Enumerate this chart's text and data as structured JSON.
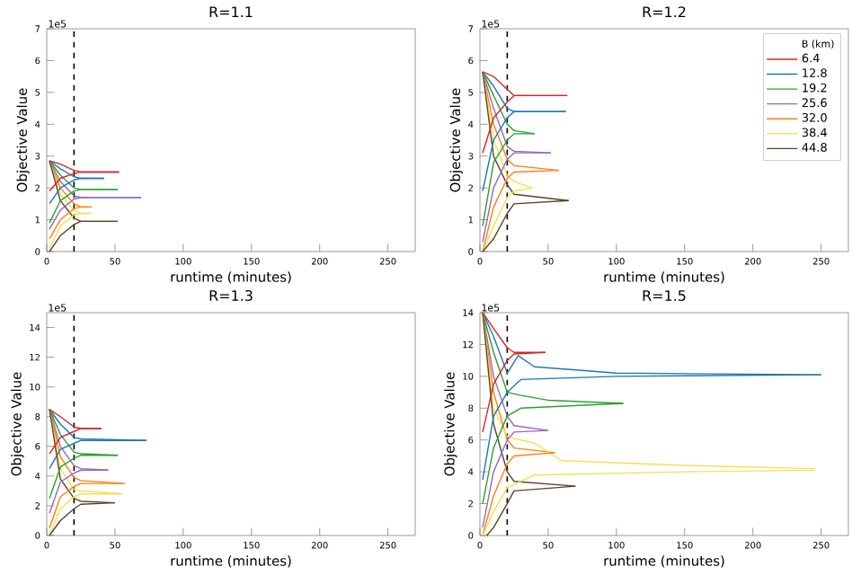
{
  "chart_data": [
    {
      "type": "line",
      "title": "R=1.1",
      "xlabel": "runtime (minutes)",
      "ylabel": "Objective Value",
      "annotations": [
        "1e5"
      ],
      "xlim": [
        0,
        270
      ],
      "xticks": [
        0,
        50,
        100,
        150,
        200,
        250
      ],
      "ylim": [
        0,
        7
      ],
      "yticks": [
        0,
        1,
        2,
        3,
        4,
        5,
        6,
        7
      ],
      "ref_lines": [
        {
          "axis": "x",
          "value": 20,
          "color": "#000000",
          "line_style": "dashed"
        }
      ],
      "series": [
        {
          "color": "#d62728",
          "x": [
            2,
            10,
            20,
            25,
            53
          ],
          "values": [
            2.85,
            2.75,
            2.55,
            2.5,
            2.5
          ]
        },
        {
          "color": "#1f77b4",
          "x": [
            2,
            10,
            20,
            25,
            42
          ],
          "values": [
            2.85,
            2.6,
            2.35,
            2.3,
            2.3
          ]
        },
        {
          "color": "#2ca02c",
          "x": [
            2,
            10,
            20,
            25,
            52
          ],
          "values": [
            2.85,
            2.4,
            2.0,
            1.95,
            1.95
          ]
        },
        {
          "color": "#9467bd",
          "x": [
            2,
            10,
            20,
            25,
            69
          ],
          "values": [
            2.85,
            2.2,
            1.75,
            1.7,
            1.7
          ]
        },
        {
          "color": "#ff7f0e",
          "x": [
            2,
            10,
            20,
            25,
            33
          ],
          "values": [
            2.85,
            2.0,
            1.5,
            1.4,
            1.4
          ]
        },
        {
          "color": "#f5e050",
          "x": [
            2,
            10,
            20,
            25,
            32
          ],
          "values": [
            2.85,
            1.8,
            1.3,
            1.2,
            1.2
          ]
        },
        {
          "color": "#5c4326",
          "x": [
            2,
            10,
            20,
            25,
            52
          ],
          "values": [
            2.85,
            1.6,
            1.05,
            0.95,
            0.95
          ]
        },
        {
          "color": "#d62728",
          "x": [
            2,
            10,
            20,
            25,
            53
          ],
          "values": [
            1.9,
            2.3,
            2.45,
            2.5,
            2.5
          ]
        },
        {
          "color": "#1f77b4",
          "x": [
            2,
            10,
            20,
            25,
            42
          ],
          "values": [
            1.5,
            2.0,
            2.25,
            2.3,
            2.3
          ]
        },
        {
          "color": "#2ca02c",
          "x": [
            2,
            10,
            20,
            25,
            52
          ],
          "values": [
            0.9,
            1.6,
            1.9,
            1.95,
            1.95
          ]
        },
        {
          "color": "#9467bd",
          "x": [
            2,
            10,
            20,
            25,
            69
          ],
          "values": [
            0.7,
            1.3,
            1.65,
            1.7,
            1.7
          ]
        },
        {
          "color": "#ff7f0e",
          "x": [
            2,
            10,
            20,
            25,
            33
          ],
          "values": [
            0.4,
            1.0,
            1.35,
            1.4,
            1.4
          ]
        },
        {
          "color": "#f5e050",
          "x": [
            2,
            10,
            20,
            25,
            32
          ],
          "values": [
            0.1,
            0.8,
            1.15,
            1.2,
            1.2
          ]
        },
        {
          "color": "#5c4326",
          "x": [
            2,
            10,
            20,
            25,
            52
          ],
          "values": [
            0,
            0.5,
            0.85,
            0.95,
            0.95
          ]
        }
      ]
    },
    {
      "type": "line",
      "title": "R=1.2",
      "xlabel": "runtime (minutes)",
      "ylabel": "Objective Value",
      "annotations": [
        "1e5"
      ],
      "xlim": [
        0,
        270
      ],
      "xticks": [
        0,
        50,
        100,
        150,
        200,
        250
      ],
      "ylim": [
        0,
        7
      ],
      "yticks": [
        0,
        1,
        2,
        3,
        4,
        5,
        6,
        7
      ],
      "legend": "top right",
      "legend_title": "B (km)",
      "ref_lines": [
        {
          "axis": "x",
          "value": 20,
          "color": "#000000",
          "line_style": "dashed"
        }
      ],
      "series": [
        {
          "name": "6.4",
          "color": "#d62728",
          "x": [
            2,
            10,
            20,
            25,
            64
          ],
          "values": [
            5.65,
            5.5,
            5.1,
            4.9,
            4.9
          ]
        },
        {
          "name": "12.8",
          "color": "#1f77b4",
          "x": [
            2,
            10,
            20,
            25,
            63
          ],
          "values": [
            5.65,
            5.2,
            4.5,
            4.4,
            4.4
          ]
        },
        {
          "name": "19.2",
          "color": "#2ca02c",
          "x": [
            2,
            10,
            20,
            25,
            40
          ],
          "values": [
            5.65,
            4.9,
            4.0,
            3.8,
            3.7
          ]
        },
        {
          "name": "25.6",
          "color": "#9467bd",
          "x": [
            2,
            10,
            20,
            25,
            52
          ],
          "values": [
            5.65,
            4.5,
            3.3,
            3.15,
            3.1
          ]
        },
        {
          "name": "32.0",
          "color": "#ff7f0e",
          "x": [
            2,
            10,
            20,
            25,
            58
          ],
          "values": [
            5.65,
            4.0,
            2.9,
            2.7,
            2.55
          ]
        },
        {
          "name": "38.4",
          "color": "#f5e050",
          "x": [
            2,
            10,
            20,
            25,
            38
          ],
          "values": [
            5.65,
            3.5,
            2.4,
            2.2,
            2.0
          ]
        },
        {
          "name": "44.8",
          "color": "#5c4326",
          "x": [
            2,
            10,
            20,
            25,
            65
          ],
          "values": [
            5.65,
            3.0,
            2.1,
            1.8,
            1.6
          ]
        },
        {
          "color": "#d62728",
          "x": [
            2,
            10,
            20,
            25,
            64
          ],
          "values": [
            3.1,
            4.2,
            4.7,
            4.9,
            4.9
          ]
        },
        {
          "color": "#1f77b4",
          "x": [
            2,
            10,
            20,
            25,
            63
          ],
          "values": [
            1.9,
            3.5,
            4.2,
            4.4,
            4.4
          ]
        },
        {
          "color": "#2ca02c",
          "x": [
            2,
            10,
            20,
            25,
            40
          ],
          "values": [
            0.8,
            2.8,
            3.5,
            3.7,
            3.7
          ]
        },
        {
          "color": "#9467bd",
          "x": [
            2,
            10,
            20,
            25,
            52
          ],
          "values": [
            0.3,
            2.0,
            2.9,
            3.1,
            3.1
          ]
        },
        {
          "color": "#ff7f0e",
          "x": [
            2,
            10,
            20,
            25,
            58
          ],
          "values": [
            0,
            1.4,
            2.3,
            2.5,
            2.55
          ]
        },
        {
          "color": "#f5e050",
          "x": [
            2,
            10,
            20,
            25,
            38
          ],
          "values": [
            0,
            0.8,
            1.7,
            1.9,
            2.0
          ]
        },
        {
          "color": "#5c4326",
          "x": [
            2,
            10,
            20,
            25,
            65
          ],
          "values": [
            0,
            0.4,
            1.2,
            1.5,
            1.6
          ]
        }
      ]
    },
    {
      "type": "line",
      "title": "R=1.3",
      "xlabel": "runtime (minutes)",
      "ylabel": "Objective Value",
      "annotations": [
        "1e5"
      ],
      "xlim": [
        0,
        270
      ],
      "xticks": [
        0,
        50,
        100,
        150,
        200,
        250
      ],
      "ylim": [
        0,
        15
      ],
      "yticks": [
        0,
        2,
        4,
        6,
        8,
        10,
        12,
        14
      ],
      "ref_lines": [
        {
          "axis": "x",
          "value": 20,
          "color": "#000000",
          "line_style": "dashed"
        }
      ],
      "series": [
        {
          "color": "#d62728",
          "x": [
            2,
            10,
            20,
            25,
            40
          ],
          "values": [
            8.5,
            8.0,
            7.3,
            7.2,
            7.2
          ]
        },
        {
          "color": "#1f77b4",
          "x": [
            2,
            10,
            20,
            25,
            73
          ],
          "values": [
            8.5,
            7.5,
            6.6,
            6.5,
            6.4
          ]
        },
        {
          "color": "#2ca02c",
          "x": [
            2,
            10,
            20,
            25,
            52
          ],
          "values": [
            8.5,
            6.8,
            5.6,
            5.5,
            5.4
          ]
        },
        {
          "color": "#9467bd",
          "x": [
            2,
            10,
            20,
            25,
            45
          ],
          "values": [
            8.5,
            6.0,
            4.7,
            4.5,
            4.4
          ]
        },
        {
          "color": "#ff7f0e",
          "x": [
            2,
            10,
            20,
            25,
            57
          ],
          "values": [
            8.5,
            5.3,
            3.9,
            3.7,
            3.5
          ]
        },
        {
          "color": "#f5e050",
          "x": [
            2,
            10,
            20,
            25,
            55
          ],
          "values": [
            8.5,
            4.5,
            3.1,
            3.0,
            2.8
          ]
        },
        {
          "color": "#5c4326",
          "x": [
            2,
            10,
            20,
            25,
            50
          ],
          "values": [
            8.5,
            3.8,
            2.5,
            2.3,
            2.2
          ]
        },
        {
          "color": "#d62728",
          "x": [
            2,
            10,
            20,
            25,
            40
          ],
          "values": [
            5.5,
            6.6,
            7.0,
            7.2,
            7.2
          ]
        },
        {
          "color": "#1f77b4",
          "x": [
            2,
            10,
            20,
            25,
            73
          ],
          "values": [
            4.5,
            5.8,
            6.2,
            6.4,
            6.4
          ]
        },
        {
          "color": "#2ca02c",
          "x": [
            2,
            10,
            20,
            25,
            52
          ],
          "values": [
            2.5,
            4.6,
            5.2,
            5.4,
            5.4
          ]
        },
        {
          "color": "#9467bd",
          "x": [
            2,
            10,
            20,
            25,
            45
          ],
          "values": [
            1.5,
            3.6,
            4.2,
            4.4,
            4.4
          ]
        },
        {
          "color": "#ff7f0e",
          "x": [
            2,
            10,
            20,
            25,
            57
          ],
          "values": [
            0.5,
            2.6,
            3.3,
            3.5,
            3.5
          ]
        },
        {
          "color": "#f5e050",
          "x": [
            2,
            10,
            20,
            25,
            55
          ],
          "values": [
            0,
            1.8,
            2.6,
            2.8,
            2.8
          ]
        },
        {
          "color": "#5c4326",
          "x": [
            2,
            10,
            20,
            25,
            50
          ],
          "values": [
            0,
            1.0,
            1.8,
            2.1,
            2.2
          ]
        }
      ]
    },
    {
      "type": "line",
      "title": "R=1.5",
      "xlabel": "runtime (minutes)",
      "ylabel": "Objective Value",
      "annotations": [
        "1e5"
      ],
      "xlim": [
        0,
        270
      ],
      "xticks": [
        0,
        50,
        100,
        150,
        200,
        250
      ],
      "ylim": [
        0,
        14
      ],
      "yticks": [
        0,
        2,
        4,
        6,
        8,
        10,
        12,
        14
      ],
      "ref_lines": [
        {
          "axis": "x",
          "value": 20,
          "color": "#000000",
          "line_style": "dashed"
        }
      ],
      "series": [
        {
          "color": "#d62728",
          "x": [
            2,
            10,
            20,
            25,
            48
          ],
          "values": [
            14,
            13,
            11.8,
            11.5,
            11.5
          ]
        },
        {
          "color": "#1f77b4",
          "x": [
            2,
            10,
            20,
            28,
            40,
            100,
            250
          ],
          "values": [
            14,
            12.5,
            10.2,
            11.3,
            10.6,
            10.2,
            10.1
          ]
        },
        {
          "color": "#2ca02c",
          "x": [
            2,
            10,
            20,
            30,
            50,
            105
          ],
          "values": [
            14,
            11.5,
            9.0,
            8.8,
            8.5,
            8.3
          ]
        },
        {
          "color": "#9467bd",
          "x": [
            2,
            10,
            20,
            25,
            50
          ],
          "values": [
            14,
            10,
            7.5,
            6.9,
            6.6
          ]
        },
        {
          "color": "#ff7f0e",
          "x": [
            2,
            10,
            20,
            25,
            55
          ],
          "values": [
            14,
            9,
            6.0,
            5.5,
            5.2
          ]
        },
        {
          "color": "#f5e050",
          "x": [
            2,
            10,
            20,
            40,
            60,
            150,
            245
          ],
          "values": [
            14,
            8,
            6.2,
            5.8,
            4.7,
            4.4,
            4.2
          ]
        },
        {
          "color": "#5c4326",
          "x": [
            2,
            10,
            20,
            25,
            70
          ],
          "values": [
            14,
            7,
            4.0,
            3.4,
            3.1
          ]
        },
        {
          "color": "#d62728",
          "x": [
            2,
            10,
            20,
            25,
            48
          ],
          "values": [
            6.5,
            9.5,
            11.0,
            11.4,
            11.5
          ]
        },
        {
          "color": "#1f77b4",
          "x": [
            2,
            10,
            20,
            30,
            100,
            250
          ],
          "values": [
            3.5,
            7.5,
            9.0,
            9.8,
            10.0,
            10.1
          ]
        },
        {
          "color": "#2ca02c",
          "x": [
            2,
            10,
            20,
            30,
            105
          ],
          "values": [
            2.0,
            5.5,
            7.5,
            8.0,
            8.3
          ]
        },
        {
          "color": "#9467bd",
          "x": [
            2,
            10,
            20,
            25,
            50
          ],
          "values": [
            0.5,
            4.0,
            6.0,
            6.5,
            6.6
          ]
        },
        {
          "color": "#ff7f0e",
          "x": [
            2,
            10,
            20,
            25,
            55
          ],
          "values": [
            0,
            2.5,
            4.5,
            5.0,
            5.2
          ]
        },
        {
          "color": "#f5e050",
          "x": [
            2,
            10,
            20,
            40,
            150,
            245
          ],
          "values": [
            0,
            1.5,
            3.0,
            3.8,
            4.0,
            4.1
          ]
        },
        {
          "color": "#5c4326",
          "x": [
            5,
            10,
            20,
            25,
            70
          ],
          "values": [
            0,
            0.5,
            2.0,
            2.8,
            3.1
          ]
        }
      ]
    }
  ]
}
